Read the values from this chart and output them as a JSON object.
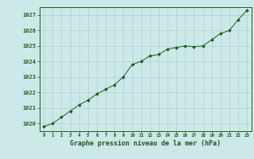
{
  "x": [
    0,
    1,
    2,
    3,
    4,
    5,
    6,
    7,
    8,
    9,
    10,
    11,
    12,
    13,
    14,
    15,
    16,
    17,
    18,
    19,
    20,
    21,
    22,
    23
  ],
  "y": [
    1019.8,
    1020.0,
    1020.4,
    1020.8,
    1021.2,
    1021.5,
    1021.9,
    1022.2,
    1022.5,
    1023.0,
    1023.8,
    1024.0,
    1024.35,
    1024.45,
    1024.8,
    1024.9,
    1025.0,
    1024.95,
    1025.0,
    1025.4,
    1025.8,
    1026.0,
    1026.7,
    1027.3
  ],
  "line_color": "#1a5c1a",
  "marker_color": "#1a5c1a",
  "bg_color": "#cce8e8",
  "grid_color": "#b0d0d0",
  "xlabel": "Graphe pression niveau de la mer (hPa)",
  "xlabel_color": "#1a5c1a",
  "tick_color": "#1a5c1a",
  "ylim": [
    1019.5,
    1027.5
  ],
  "yticks": [
    1020,
    1021,
    1022,
    1023,
    1024,
    1025,
    1026,
    1027
  ],
  "xticks": [
    0,
    1,
    2,
    3,
    4,
    5,
    6,
    7,
    8,
    9,
    10,
    11,
    12,
    13,
    14,
    15,
    16,
    17,
    18,
    19,
    20,
    21,
    22,
    23
  ],
  "xlim": [
    -0.5,
    23.5
  ]
}
